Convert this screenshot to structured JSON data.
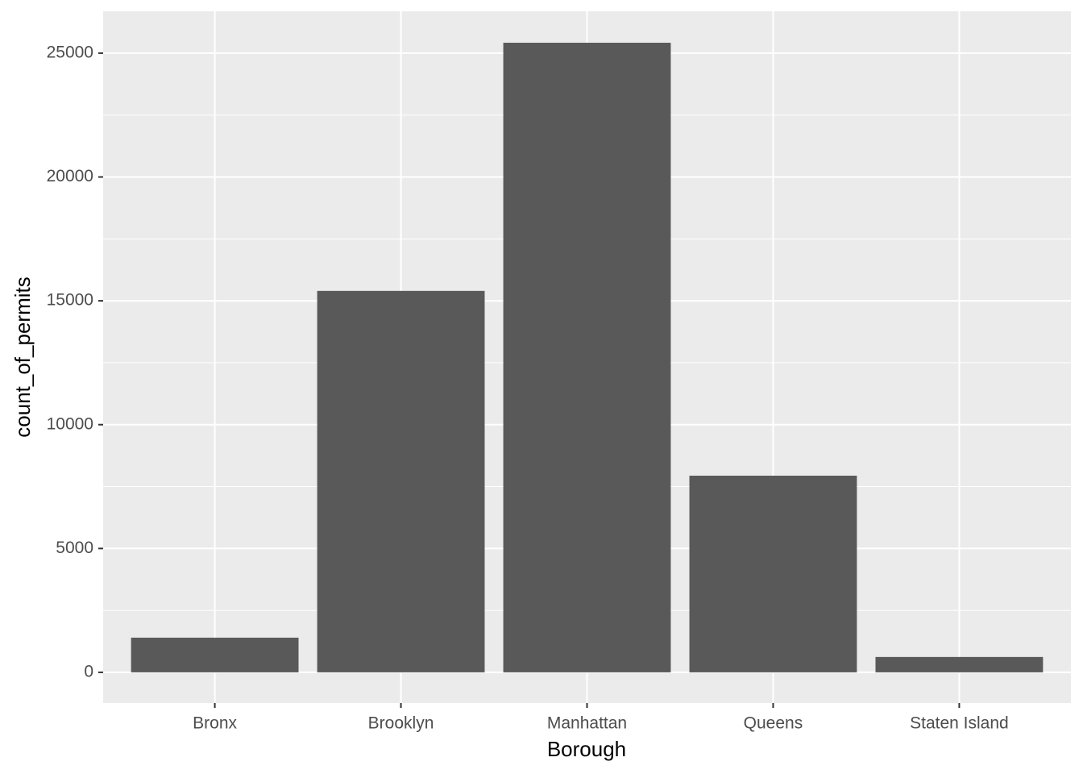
{
  "chart_data": {
    "type": "bar",
    "x_label": "Borough",
    "y_label": "count_of_permits",
    "categories": [
      "Bronx",
      "Brooklyn",
      "Manhattan",
      "Queens",
      "Staten Island"
    ],
    "values": [
      1400,
      15400,
      25420,
      7940,
      620
    ],
    "color": "#595959",
    "ylim": [
      -1240,
      26690
    ],
    "yticks": [
      0,
      5000,
      10000,
      15000,
      20000,
      25000
    ],
    "grid": true
  }
}
